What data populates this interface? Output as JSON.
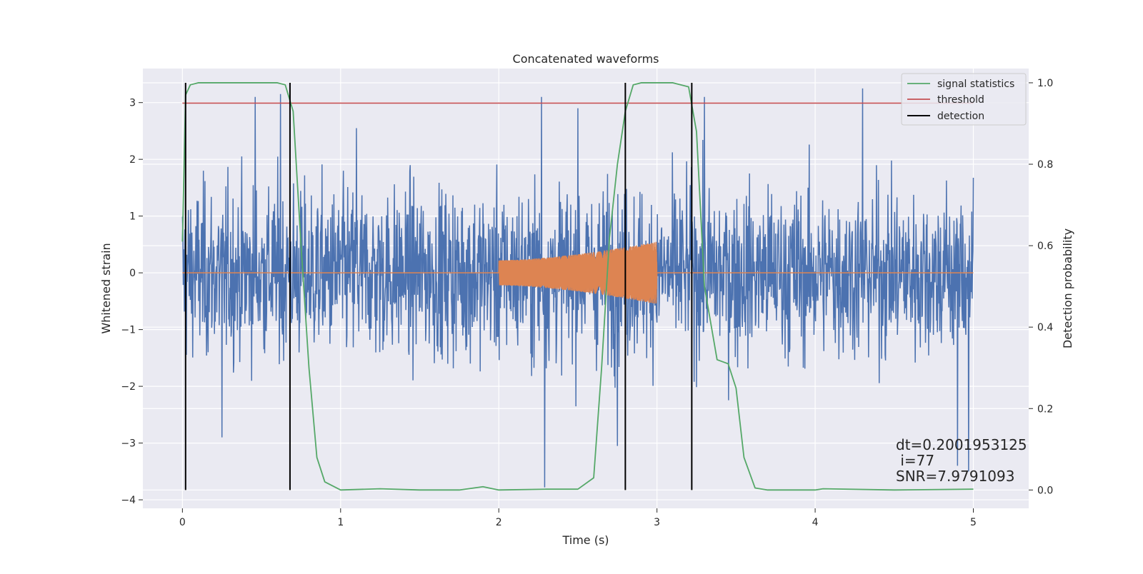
{
  "chart_data": {
    "type": "line",
    "title": "Concatenated waveforms",
    "xlabel": "Time (s)",
    "ylabel": "Whitened strain",
    "y2label": "Detection probability",
    "xlim": [
      -0.25,
      5.35
    ],
    "ylim": [
      -4.15,
      3.6
    ],
    "y2lim": [
      -0.045,
      1.035
    ],
    "xticks": [
      0,
      1,
      2,
      3,
      4,
      5
    ],
    "yticks": [
      -4,
      -3,
      -2,
      -1,
      0,
      1,
      2,
      3
    ],
    "y2ticks": [
      0.0,
      0.2,
      0.4,
      0.6,
      0.8,
      1.0
    ],
    "grid": true,
    "legend_position": "top-right",
    "colors": {
      "background": "#eaeaf2",
      "noise": "#4c72b0",
      "waveform": "#dd8452",
      "signal_statistics": "#55a868",
      "threshold": "#c44e52",
      "detection": "#000000"
    },
    "series": [
      {
        "name": "",
        "axis": "left",
        "description": "whitened noisy strain, amplitude roughly within ±2.5 with spikes to ±3.2",
        "t_range": [
          0,
          5
        ],
        "sample_rate": 400,
        "spikes": [
          {
            "x": 0.46,
            "y": 3.1
          },
          {
            "x": 0.62,
            "y": 3.15
          },
          {
            "x": 1.1,
            "y": 2.55
          },
          {
            "x": 2.27,
            "y": 3.1
          },
          {
            "x": 2.29,
            "y": -3.78
          },
          {
            "x": 2.5,
            "y": 2.9
          },
          {
            "x": 3.3,
            "y": 3.1
          },
          {
            "x": 4.3,
            "y": 3.25
          },
          {
            "x": 4.9,
            "y": -3.4
          },
          {
            "x": 4.97,
            "y": -3.5
          },
          {
            "x": 0.25,
            "y": -2.9
          },
          {
            "x": 2.75,
            "y": -3.05
          }
        ]
      },
      {
        "name": "",
        "axis": "left",
        "description": "injected chirp waveform, zero outside 2 s to 3 s",
        "t_range": [
          2.0,
          3.0
        ],
        "amplitude_start": 0.22,
        "amplitude_end": 0.55
      }
    ],
    "signal_statistics": {
      "name": "signal statistics",
      "axis": "right",
      "x": [
        0,
        0.02,
        0.05,
        0.1,
        0.5,
        0.6,
        0.65,
        0.7,
        0.75,
        0.8,
        0.85,
        0.9,
        1.0,
        1.25,
        1.5,
        1.75,
        1.9,
        2.0,
        2.3,
        2.5,
        2.6,
        2.65,
        2.7,
        2.75,
        2.8,
        2.85,
        2.9,
        3.1,
        3.2,
        3.25,
        3.3,
        3.38,
        3.45,
        3.5,
        3.55,
        3.62,
        3.7,
        4.0,
        4.05,
        4.5,
        5.0
      ],
      "y": [
        0.61,
        0.97,
        0.995,
        1.0,
        1.0,
        1.0,
        0.995,
        0.93,
        0.6,
        0.3,
        0.08,
        0.02,
        0.0,
        0.003,
        0.0,
        0.0,
        0.008,
        0.0,
        0.002,
        0.002,
        0.03,
        0.3,
        0.62,
        0.8,
        0.93,
        0.995,
        1.0,
        1.0,
        0.99,
        0.88,
        0.5,
        0.32,
        0.31,
        0.25,
        0.08,
        0.005,
        0.0,
        0.0,
        0.003,
        0.0,
        0.002
      ]
    },
    "threshold": {
      "name": "threshold",
      "axis": "right",
      "value": 0.95,
      "x_range": [
        0,
        5
      ]
    },
    "detection": {
      "name": "detection",
      "axis": "right",
      "x": [
        0.02,
        0.68,
        2.8,
        3.22
      ],
      "y_range": [
        0.0,
        1.0
      ]
    },
    "annotations": [
      "dt=0.2001953125",
      " i=77",
      "SNR=7.9791093"
    ]
  }
}
